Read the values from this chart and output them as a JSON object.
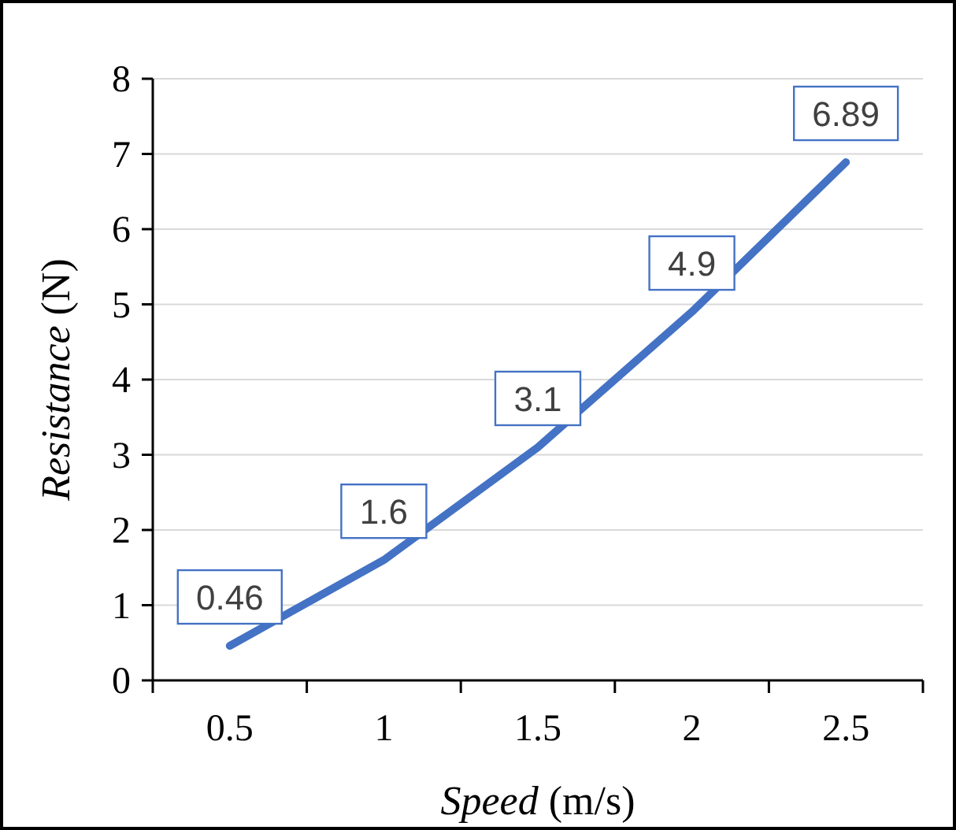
{
  "chart_data": {
    "type": "line",
    "xlabel": "Speed (m/s)",
    "ylabel": "Resistance (N)",
    "categories": [
      "0.5",
      "1",
      "1.5",
      "2",
      "2.5"
    ],
    "series": [
      {
        "color": "#4472c4",
        "values": [
          0.46,
          1.6,
          3.1,
          4.9,
          6.89
        ]
      }
    ],
    "ylim": [
      0,
      8
    ],
    "yticks": [
      0,
      1,
      2,
      3,
      4,
      5,
      6,
      7,
      8
    ],
    "grid": "y",
    "data_labels": true,
    "marker": "none",
    "line_style": "solid"
  }
}
